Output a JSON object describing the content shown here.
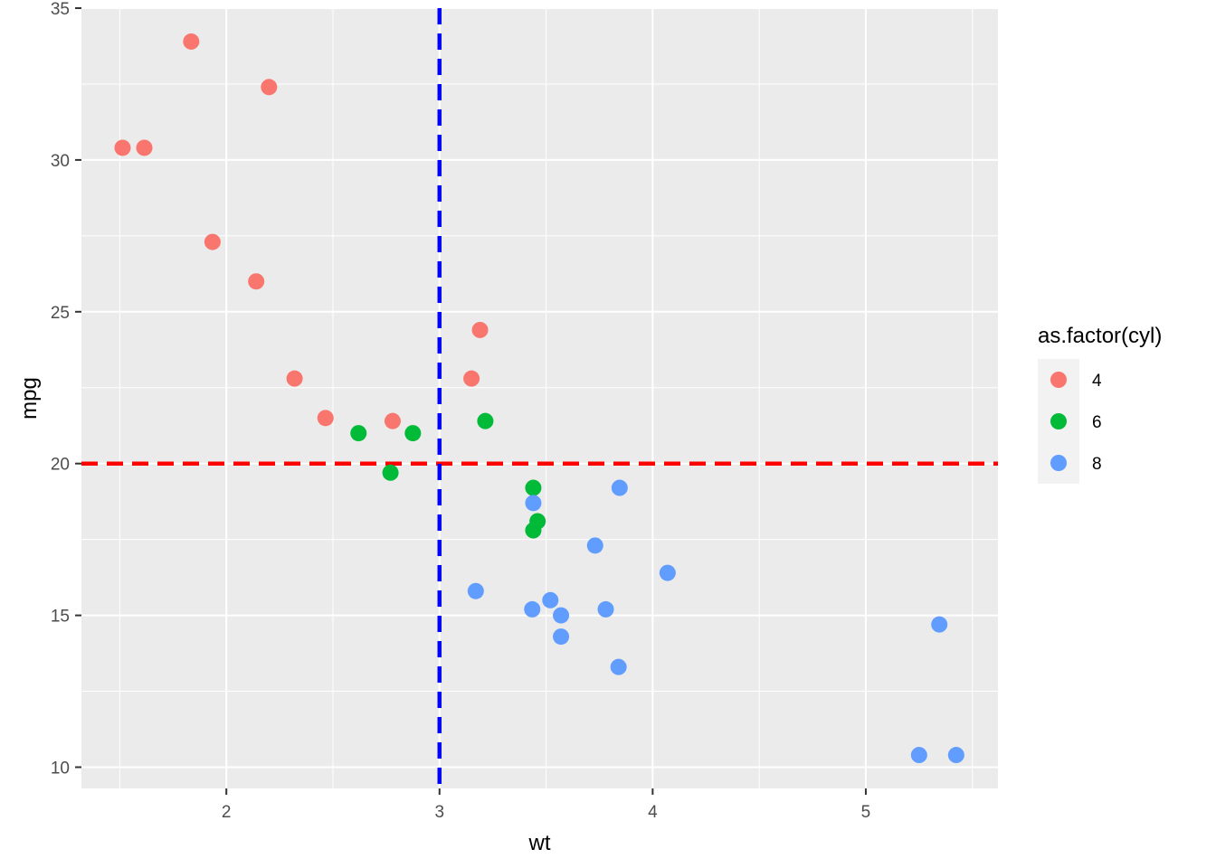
{
  "chart_data": {
    "type": "scatter",
    "title": "",
    "xlabel": "wt",
    "ylabel": "mpg",
    "xlim": [
      1.32,
      5.62
    ],
    "ylim": [
      9.3,
      35.0
    ],
    "x_ticks": [
      2,
      3,
      4,
      5
    ],
    "y_ticks": [
      10,
      15,
      20,
      25,
      30,
      35
    ],
    "grid": true,
    "legend": {
      "title": "as.factor(cyl)",
      "placement": "right",
      "entries": [
        {
          "label": "4",
          "color": "#F8766D"
        },
        {
          "label": "6",
          "color": "#00BA38"
        },
        {
          "label": "8",
          "color": "#619CFF"
        }
      ]
    },
    "series": [
      {
        "name": "4",
        "color": "#F8766D",
        "points": [
          [
            1.513,
            30.4
          ],
          [
            1.615,
            30.4
          ],
          [
            1.835,
            33.9
          ],
          [
            1.935,
            27.3
          ],
          [
            2.14,
            26.0
          ],
          [
            2.2,
            32.4
          ],
          [
            2.32,
            22.8
          ],
          [
            2.465,
            21.5
          ],
          [
            2.78,
            21.4
          ],
          [
            3.15,
            22.8
          ],
          [
            3.19,
            24.4
          ]
        ]
      },
      {
        "name": "6",
        "color": "#00BA38",
        "points": [
          [
            2.62,
            21.0
          ],
          [
            2.77,
            19.7
          ],
          [
            2.875,
            21.0
          ],
          [
            3.215,
            21.4
          ],
          [
            3.44,
            19.2
          ],
          [
            3.44,
            17.8
          ],
          [
            3.46,
            18.1
          ]
        ]
      },
      {
        "name": "8",
        "color": "#619CFF",
        "points": [
          [
            3.17,
            15.8
          ],
          [
            3.435,
            15.2
          ],
          [
            3.44,
            18.7
          ],
          [
            3.52,
            15.5
          ],
          [
            3.57,
            15.0
          ],
          [
            3.57,
            14.3
          ],
          [
            3.73,
            17.3
          ],
          [
            3.78,
            15.2
          ],
          [
            3.84,
            13.3
          ],
          [
            3.845,
            19.2
          ],
          [
            4.07,
            16.4
          ],
          [
            5.25,
            10.4
          ],
          [
            5.345,
            14.7
          ],
          [
            5.424,
            10.4
          ]
        ]
      }
    ],
    "reference_lines": [
      {
        "orientation": "horizontal",
        "value": 20,
        "color": "#FF0000",
        "style": "dashed"
      },
      {
        "orientation": "vertical",
        "value": 3,
        "color": "#0000FF",
        "style": "dashed"
      }
    ]
  }
}
